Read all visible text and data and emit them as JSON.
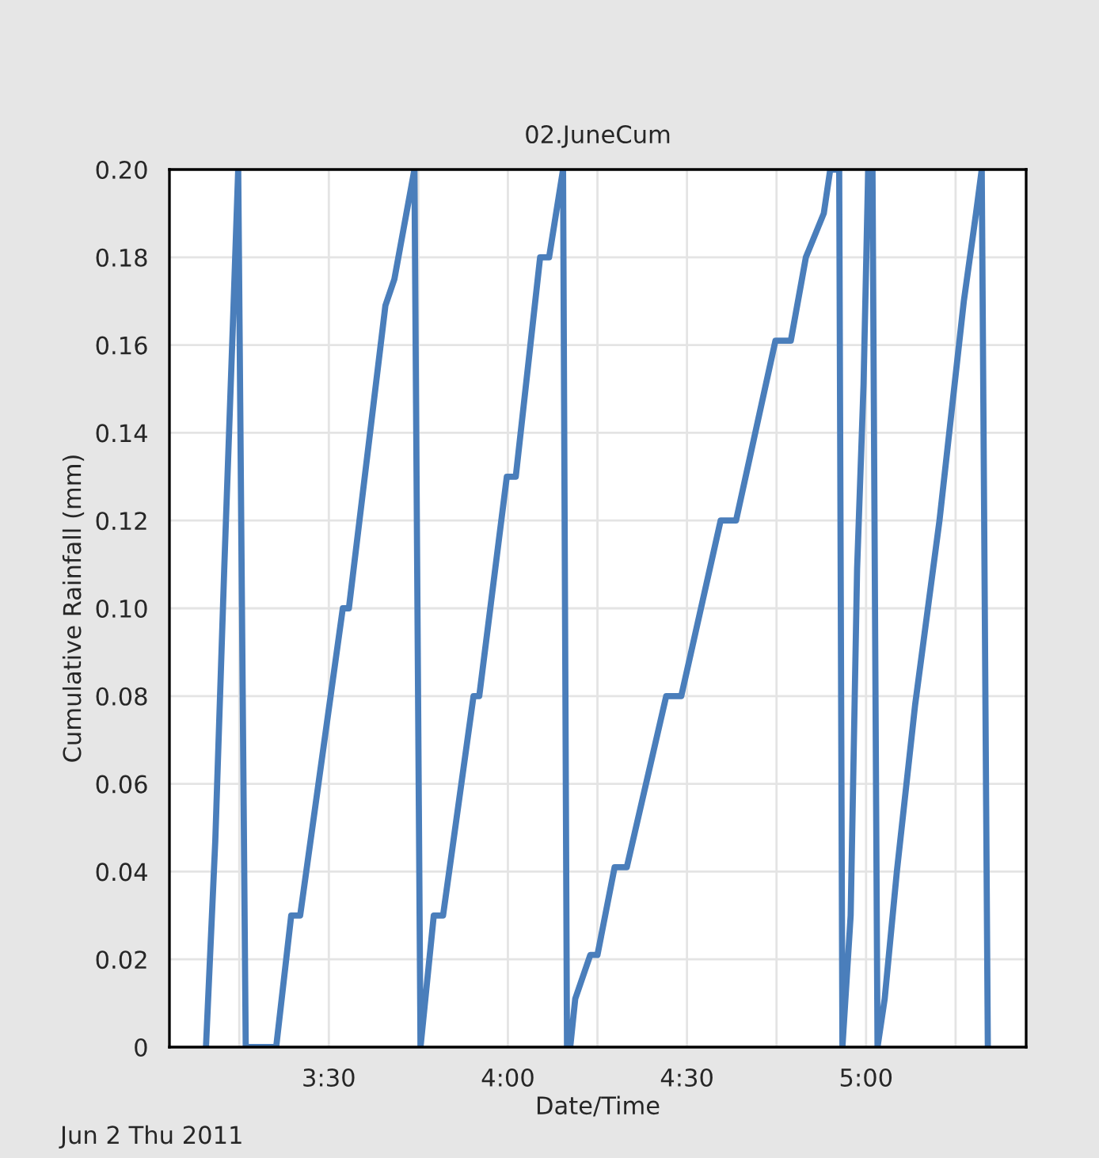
{
  "chart_data": {
    "type": "line",
    "title": "02.JuneCum",
    "xlabel": "Date/Time",
    "ylabel": "Cumulative Rainfall (mm)",
    "annotations": [
      "Jun 2 Thu 2011"
    ],
    "x": [
      3.157,
      3.183,
      3.208,
      3.234,
      3.247,
      3.268,
      3.353,
      3.395,
      3.42,
      3.539,
      3.556,
      3.658,
      3.683,
      3.739,
      3.756,
      3.793,
      3.819,
      3.904,
      3.92,
      3.997,
      4.022,
      4.09,
      4.115,
      4.154,
      4.165,
      4.174,
      4.188,
      4.23,
      4.25,
      4.298,
      4.332,
      4.442,
      4.484,
      4.594,
      4.637,
      4.747,
      4.79,
      4.832,
      4.882,
      4.9,
      4.925,
      4.934,
      4.957,
      4.975,
      4.993,
      5.006,
      5.018,
      5.032,
      5.052,
      5.086,
      5.137,
      5.205,
      5.273,
      5.307,
      5.323,
      5.34
    ],
    "series": [
      {
        "color": "#4a7ebb",
        "values": [
          0,
          0.047,
          0.109,
          0.169,
          0.2,
          0,
          0,
          0.03,
          0.03,
          0.1,
          0.1,
          0.169,
          0.175,
          0.2,
          0,
          0.03,
          0.03,
          0.08,
          0.08,
          0.13,
          0.13,
          0.18,
          0.18,
          0.2,
          0,
          0,
          0.011,
          0.021,
          0.021,
          0.041,
          0.041,
          0.08,
          0.08,
          0.12,
          0.12,
          0.161,
          0.161,
          0.18,
          0.19,
          0.2,
          0.2,
          0,
          0.03,
          0.109,
          0.151,
          0.2,
          0.2,
          0,
          0.011,
          0.04,
          0.078,
          0.12,
          0.17,
          0.19,
          0.2,
          0
        ]
      }
    ],
    "xlim": [
      3.055,
      5.447
    ],
    "ylim": [
      0,
      0.2
    ],
    "xticks": [
      {
        "value": 3.25,
        "label": null
      },
      {
        "value": 3.5,
        "label": "3:30"
      },
      {
        "value": 3.75,
        "label": null
      },
      {
        "value": 4.0,
        "label": "4:00"
      },
      {
        "value": 4.25,
        "label": null
      },
      {
        "value": 4.5,
        "label": "4:30"
      },
      {
        "value": 4.75,
        "label": null
      },
      {
        "value": 5.0,
        "label": "5:00"
      },
      {
        "value": 5.25,
        "label": null
      }
    ],
    "yticks": [
      {
        "value": 0,
        "label": "0"
      },
      {
        "value": 0.02,
        "label": "0.02"
      },
      {
        "value": 0.04,
        "label": "0.04"
      },
      {
        "value": 0.06,
        "label": "0.06"
      },
      {
        "value": 0.08,
        "label": "0.08"
      },
      {
        "value": 0.1,
        "label": "0.10"
      },
      {
        "value": 0.12,
        "label": "0.12"
      },
      {
        "value": 0.14,
        "label": "0.14"
      },
      {
        "value": 0.16,
        "label": "0.16"
      },
      {
        "value": 0.18,
        "label": "0.18"
      },
      {
        "value": 0.2,
        "label": "0.20"
      }
    ],
    "grid": true,
    "marker": "none",
    "line_style": "solid",
    "legend": false
  }
}
